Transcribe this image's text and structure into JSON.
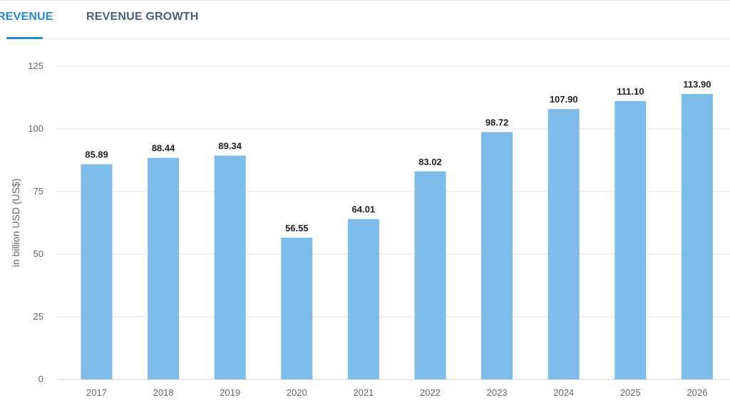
{
  "tabs": [
    {
      "label": "REVENUE",
      "active": true
    },
    {
      "label": "REVENUE GROWTH",
      "active": false
    }
  ],
  "colors": {
    "bar": "#7dbbe9",
    "accent": "#1f8bd6",
    "grid": "#e5e5e5"
  },
  "chart_data": {
    "type": "bar",
    "categories": [
      "2017",
      "2018",
      "2019",
      "2020",
      "2021",
      "2022",
      "2023",
      "2024",
      "2025",
      "2026"
    ],
    "values": [
      85.89,
      88.44,
      89.34,
      56.55,
      64.01,
      83.02,
      98.72,
      107.9,
      111.1,
      113.9
    ],
    "value_labels": [
      "85.89",
      "88.44",
      "89.34",
      "56.55",
      "64.01",
      "83.02",
      "98.72",
      "107.90",
      "111.10",
      "113.90"
    ],
    "ylabel": "in billion USD (US$)",
    "ylim": [
      0,
      125
    ],
    "yticks": [
      "0",
      "25",
      "50",
      "75",
      "100",
      "125"
    ],
    "grid": true
  }
}
